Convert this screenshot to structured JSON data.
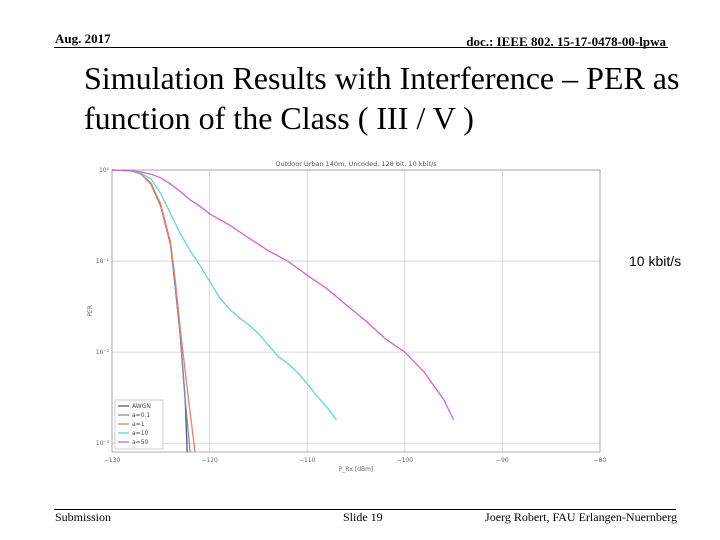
{
  "header": {
    "date": "Aug. 2017",
    "doc_id": "doc.: IEEE 802. 15-17-0478-00-lpwa"
  },
  "slide": {
    "title": "Simulation Results with Interference – PER as function of the Class ( III / V )",
    "side_note": "10 kbit/s"
  },
  "footer": {
    "left": "Submission",
    "center": "Slide 19",
    "right": "Joerg Robert, FAU Erlangen-Nuernberg"
  },
  "chart_data": {
    "type": "line",
    "title": "Outdoor Urban 140m, Uncoded, 128 bit, 10 kbit/s",
    "xlabel": "P_Rx [dBm]",
    "ylabel": "PER",
    "xlim": [
      -130,
      -80
    ],
    "ylim": [
      0.0008,
      1.0
    ],
    "yscale": "log",
    "xticks": [
      -130,
      -120,
      -110,
      -100,
      -90,
      -80
    ],
    "xtick_labels": [
      "−130",
      "−120",
      "−110",
      "−100",
      "−90",
      "−80"
    ],
    "yticks": [
      1,
      0.1,
      0.01,
      0.001
    ],
    "ytick_labels": [
      "10⁰",
      "10⁻¹",
      "10⁻²",
      "10⁻³"
    ],
    "grid": true,
    "legend_position": "bottom-left",
    "series": [
      {
        "name": "AWGN",
        "color": "#555577",
        "x": [
          -130,
          -128,
          -127,
          -126,
          -125,
          -124,
          -123.5,
          -123,
          -122.5,
          -122.3
        ],
        "y": [
          1.0,
          0.98,
          0.9,
          0.7,
          0.4,
          0.15,
          0.05,
          0.015,
          0.003,
          0.0008
        ]
      },
      {
        "name": "a=0.1",
        "color": "#7a8fb0",
        "x": [
          -130,
          -128,
          -127,
          -126,
          -125,
          -124,
          -123.5,
          -123,
          -122.5,
          -122.0
        ],
        "y": [
          1.0,
          0.98,
          0.9,
          0.7,
          0.4,
          0.15,
          0.05,
          0.015,
          0.003,
          0.0008
        ]
      },
      {
        "name": "a=1",
        "color": "#e8806a",
        "x": [
          -130,
          -128,
          -127,
          -126,
          -125,
          -124,
          -123.5,
          -123,
          -122.3,
          -121.5
        ],
        "y": [
          1.0,
          0.98,
          0.9,
          0.72,
          0.42,
          0.16,
          0.06,
          0.018,
          0.004,
          0.0008
        ]
      },
      {
        "name": "a=10",
        "color": "#6fd0d0",
        "x": [
          -130,
          -128,
          -127,
          -126,
          -125,
          -124,
          -123,
          -122,
          -121,
          -120,
          -119,
          -118,
          -117,
          -116,
          -115,
          -114,
          -113,
          -112,
          -111,
          -110,
          -109,
          -108,
          -107
        ],
        "y": [
          1.0,
          0.98,
          0.92,
          0.8,
          0.55,
          0.33,
          0.2,
          0.13,
          0.09,
          0.06,
          0.04,
          0.03,
          0.024,
          0.02,
          0.016,
          0.012,
          0.009,
          0.0075,
          0.006,
          0.0045,
          0.0033,
          0.0025,
          0.0018
        ]
      },
      {
        "name": "a=50",
        "color": "#cc66cc",
        "x": [
          -130,
          -128,
          -127,
          -126,
          -125,
          -124,
          -123,
          -122,
          -121,
          -120,
          -118,
          -116,
          -114,
          -112,
          -110,
          -108,
          -106,
          -104,
          -102,
          -100,
          -98,
          -96,
          -95
        ],
        "y": [
          1.0,
          0.98,
          0.95,
          0.9,
          0.82,
          0.7,
          0.58,
          0.47,
          0.4,
          0.33,
          0.25,
          0.18,
          0.13,
          0.1,
          0.07,
          0.05,
          0.033,
          0.022,
          0.014,
          0.01,
          0.006,
          0.003,
          0.0018
        ]
      }
    ]
  }
}
